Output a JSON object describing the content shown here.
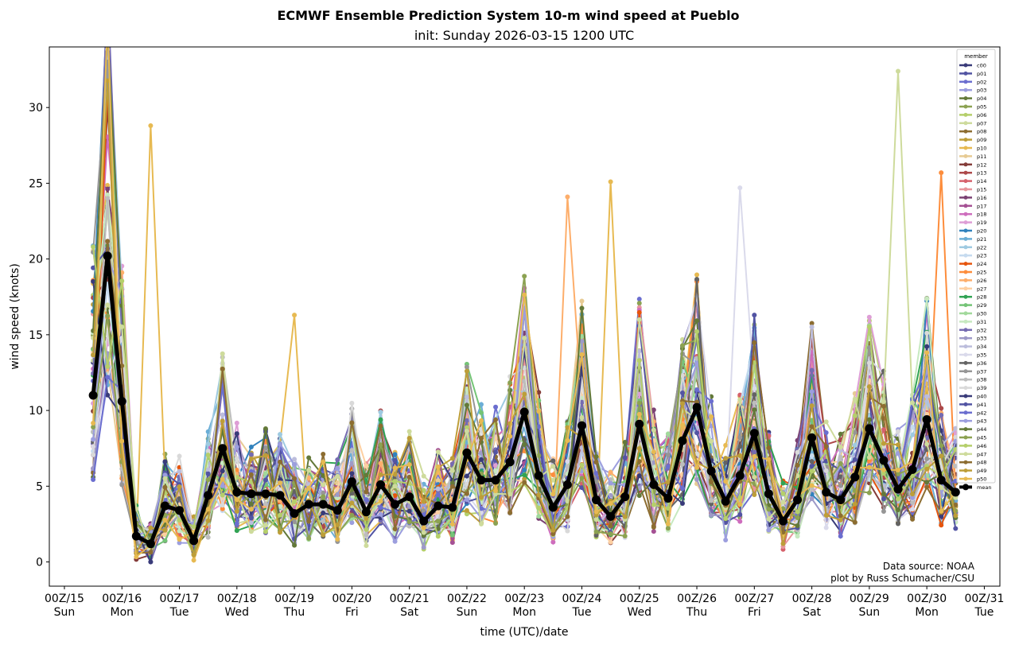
{
  "chart_data": {
    "type": "line",
    "title": "ECMWF Ensemble Prediction System 10-m wind speed at Pueblo",
    "subtitle": "init: Sunday 2026-03-15 1200 UTC",
    "xlabel": "time (UTC)/date",
    "ylabel": "wind speed (knots)",
    "ylim": [
      -1.6,
      34.0
    ],
    "xlim_hours_from_00Z15": [
      -6.3,
      390.5
    ],
    "yticks": [
      0,
      5,
      10,
      15,
      20,
      25,
      30
    ],
    "xticks": [
      {
        "hour": 0,
        "label": "00Z/15",
        "day": "Sun"
      },
      {
        "hour": 24,
        "label": "00Z/16",
        "day": "Mon"
      },
      {
        "hour": 48,
        "label": "00Z/17",
        "day": "Tue"
      },
      {
        "hour": 72,
        "label": "00Z/18",
        "day": "Wed"
      },
      {
        "hour": 96,
        "label": "00Z/19",
        "day": "Thu"
      },
      {
        "hour": 120,
        "label": "00Z/20",
        "day": "Fri"
      },
      {
        "hour": 144,
        "label": "00Z/21",
        "day": "Sat"
      },
      {
        "hour": 168,
        "label": "00Z/22",
        "day": "Sun"
      },
      {
        "hour": 192,
        "label": "00Z/23",
        "day": "Mon"
      },
      {
        "hour": 216,
        "label": "00Z/24",
        "day": "Tue"
      },
      {
        "hour": 240,
        "label": "00Z/25",
        "day": "Wed"
      },
      {
        "hour": 264,
        "label": "00Z/26",
        "day": "Thu"
      },
      {
        "hour": 288,
        "label": "00Z/27",
        "day": "Fri"
      },
      {
        "hour": 312,
        "label": "00Z/28",
        "day": "Sat"
      },
      {
        "hour": 336,
        "label": "00Z/29",
        "day": "Sun"
      },
      {
        "hour": 360,
        "label": "00Z/30",
        "day": "Mon"
      },
      {
        "hour": 384,
        "label": "00Z/31",
        "day": "Tue"
      }
    ],
    "time_start_hour": 12,
    "time_step_hours": 6,
    "legend_title": "member",
    "legend_position": "right",
    "members": [
      {
        "name": "c00",
        "color": "#393b79"
      },
      {
        "name": "p01",
        "color": "#5254a3"
      },
      {
        "name": "p02",
        "color": "#6b6ecf"
      },
      {
        "name": "p03",
        "color": "#9c9ede"
      },
      {
        "name": "p04",
        "color": "#637939"
      },
      {
        "name": "p05",
        "color": "#8ca252"
      },
      {
        "name": "p06",
        "color": "#b5cf6b"
      },
      {
        "name": "p07",
        "color": "#cedb9c"
      },
      {
        "name": "p08",
        "color": "#8c6d31"
      },
      {
        "name": "p09",
        "color": "#bd9e39"
      },
      {
        "name": "p10",
        "color": "#e7ba52"
      },
      {
        "name": "p11",
        "color": "#e7cb94"
      },
      {
        "name": "p12",
        "color": "#843c39"
      },
      {
        "name": "p13",
        "color": "#ad494a"
      },
      {
        "name": "p14",
        "color": "#d6616b"
      },
      {
        "name": "p15",
        "color": "#e7969c"
      },
      {
        "name": "p16",
        "color": "#7b4173"
      },
      {
        "name": "p17",
        "color": "#a55194"
      },
      {
        "name": "p18",
        "color": "#ce6dbd"
      },
      {
        "name": "p19",
        "color": "#de9ed6"
      },
      {
        "name": "p20",
        "color": "#3182bd"
      },
      {
        "name": "p21",
        "color": "#6baed6"
      },
      {
        "name": "p22",
        "color": "#9ecae1"
      },
      {
        "name": "p23",
        "color": "#c6dbef"
      },
      {
        "name": "p24",
        "color": "#e6550d"
      },
      {
        "name": "p25",
        "color": "#fd8d3c"
      },
      {
        "name": "p26",
        "color": "#fdae6b"
      },
      {
        "name": "p27",
        "color": "#fdd0a2"
      },
      {
        "name": "p28",
        "color": "#31a354"
      },
      {
        "name": "p29",
        "color": "#74c476"
      },
      {
        "name": "p30",
        "color": "#a1d99b"
      },
      {
        "name": "p31",
        "color": "#c7e9c0"
      },
      {
        "name": "p32",
        "color": "#756bb1"
      },
      {
        "name": "p33",
        "color": "#9e9ac8"
      },
      {
        "name": "p34",
        "color": "#bcbddc"
      },
      {
        "name": "p35",
        "color": "#dadaeb"
      },
      {
        "name": "p36",
        "color": "#636363"
      },
      {
        "name": "p37",
        "color": "#969696"
      },
      {
        "name": "p38",
        "color": "#bdbdbd"
      },
      {
        "name": "p39",
        "color": "#d9d9d9"
      },
      {
        "name": "p40",
        "color": "#393b79"
      },
      {
        "name": "p41",
        "color": "#5254a3"
      },
      {
        "name": "p42",
        "color": "#6b6ecf"
      },
      {
        "name": "p43",
        "color": "#9c9ede"
      },
      {
        "name": "p44",
        "color": "#637939"
      },
      {
        "name": "p45",
        "color": "#8ca252"
      },
      {
        "name": "p46",
        "color": "#b5cf6b"
      },
      {
        "name": "p47",
        "color": "#cedb9c"
      },
      {
        "name": "p48",
        "color": "#8c6d31"
      },
      {
        "name": "p49",
        "color": "#bd9e39"
      },
      {
        "name": "p50",
        "color": "#e7ba52"
      }
    ],
    "mean": {
      "name": "mean",
      "color": "#000000",
      "values": [
        11.0,
        20.2,
        10.6,
        1.7,
        1.2,
        3.7,
        3.4,
        1.4,
        4.4,
        7.5,
        4.6,
        4.5,
        4.5,
        4.4,
        3.2,
        3.8,
        3.8,
        3.4,
        5.3,
        3.3,
        5.1,
        3.8,
        4.3,
        2.7,
        3.7,
        3.6,
        7.2,
        5.4,
        5.4,
        6.6,
        9.9,
        5.7,
        3.6,
        5.1,
        9.0,
        4.1,
        3.0,
        4.3,
        9.1,
        5.1,
        4.2,
        8.0,
        10.2,
        6.0,
        4.0,
        5.7,
        8.5,
        4.5,
        2.7,
        4.1,
        8.2,
        4.6,
        4.1,
        5.6,
        8.8,
        6.7,
        4.8,
        6.1,
        9.4,
        5.4,
        4.6
      ]
    },
    "notable_member_peaks": [
      {
        "member": "p10",
        "hour": 36,
        "value": 28.8
      },
      {
        "member": "p26",
        "hour": 210,
        "value": 24.1
      },
      {
        "member": "p10",
        "hour": 228,
        "value": 25.1
      },
      {
        "member": "p35",
        "hour": 282,
        "value": 24.7
      },
      {
        "member": "p47",
        "hour": 348,
        "value": 32.4
      },
      {
        "member": "p25",
        "hour": 366,
        "value": 25.7
      },
      {
        "member": "p10",
        "hour": 96,
        "value": 16.3
      }
    ],
    "annotation": [
      "Data source: NOAA",
      "plot by Russ Schumacher/CSU"
    ]
  }
}
